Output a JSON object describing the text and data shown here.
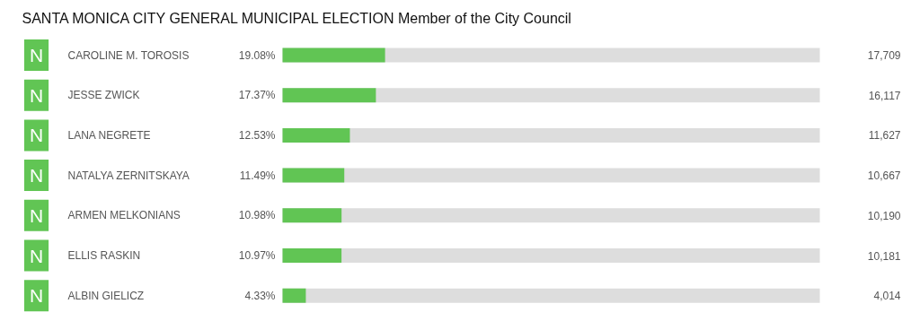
{
  "chart_data": {
    "type": "bar",
    "orientation": "horizontal",
    "title": "SANTA MONICA CITY GENERAL MUNICIPAL ELECTION Member of the City Council",
    "categories": [
      "CAROLINE M. TOROSIS",
      "JESSE ZWICK",
      "LANA NEGRETE",
      "NATALYA ZERNITSKAYA",
      "ARMEN MELKONIANS",
      "ELLIS RASKIN",
      "ALBIN GIELICZ"
    ],
    "series": [
      {
        "color": "#61c554",
        "values": [
          19.08,
          17.37,
          12.53,
          11.49,
          10.98,
          10.97,
          4.33
        ],
        "value_labels": [
          "19.08%",
          "17.37%",
          "12.53%",
          "11.49%",
          "10.98%",
          "10.97%",
          "4.33%"
        ]
      }
    ],
    "xlim": [
      0,
      100
    ],
    "tick_labels": false,
    "grid": false,
    "annotations": [
      "N",
      "N",
      "N",
      "N",
      "N",
      "N",
      "N",
      "17,709",
      "16,117",
      "11,627",
      "10,667",
      "10,190",
      "10,181",
      "4,014"
    ]
  }
}
